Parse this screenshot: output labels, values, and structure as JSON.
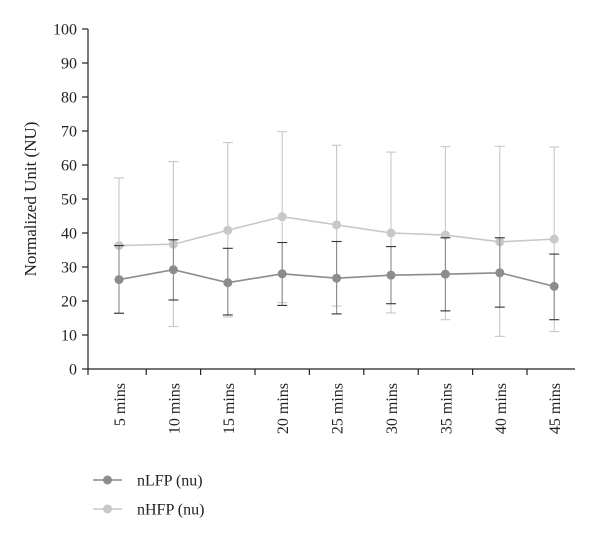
{
  "chart_data": {
    "type": "line",
    "title": "",
    "xlabel": "",
    "ylabel": "Normalized Unit (NU)",
    "ylim": [
      0,
      100
    ],
    "yticks": [
      0,
      10,
      20,
      30,
      40,
      50,
      60,
      70,
      80,
      90,
      100
    ],
    "categories": [
      "5 mins",
      "10 mins",
      "15 mins",
      "20 mins",
      "25 mins",
      "30 mins",
      "35 mins",
      "40 mins",
      "45 mins"
    ],
    "grid": false,
    "legend_position": "bottom-left",
    "error_bars": true,
    "series": [
      {
        "name": "nLFP (nu)",
        "color": "#8c8c8c",
        "values": [
          26.3,
          29.2,
          25.4,
          28.0,
          26.7,
          27.6,
          27.9,
          28.3,
          24.3
        ],
        "error_upper": [
          36.3,
          38.0,
          35.5,
          37.2,
          37.5,
          36.0,
          38.6,
          38.6,
          33.8
        ],
        "error_lower": [
          16.4,
          20.3,
          15.9,
          18.7,
          16.2,
          19.2,
          17.1,
          18.2,
          14.5
        ]
      },
      {
        "name": "nHFP (nu)",
        "color": "#c8c8c8",
        "values": [
          36.3,
          36.7,
          40.8,
          44.8,
          42.4,
          40.0,
          39.4,
          37.4,
          38.2
        ],
        "error_upper": [
          56.2,
          61.0,
          66.6,
          69.8,
          65.8,
          63.8,
          65.4,
          65.5,
          65.3
        ],
        "error_lower": [
          16.4,
          12.5,
          15.3,
          19.5,
          18.5,
          16.5,
          14.5,
          9.6,
          11.0
        ]
      }
    ]
  }
}
